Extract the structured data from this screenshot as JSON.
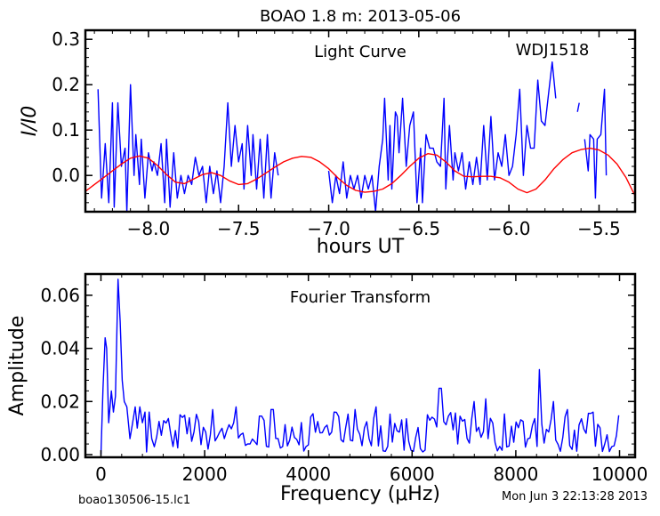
{
  "figure": {
    "title": "BOAO 1.8 m:  2013-05-06",
    "footer_left": "boao130506-15.lc1",
    "footer_right": "Mon Jun  3 22:13:28 2013"
  },
  "chart_data": [
    {
      "type": "line",
      "panel": "top",
      "annotation": "Light Curve",
      "object_label": "WDJ1518",
      "xlabel": "hours UT",
      "ylabel": "I/I0",
      "xlim": [
        -8.35,
        -5.3
      ],
      "ylim": [
        -0.08,
        0.32
      ],
      "xticks": [
        -8.0,
        -7.5,
        -7.0,
        -6.5,
        -6.0,
        -5.5
      ],
      "xtick_labels": [
        "−8.0",
        "−7.5",
        "−7.0",
        "−6.5",
        "−6.0",
        "−5.5"
      ],
      "yticks": [
        0.0,
        0.1,
        0.2,
        0.3
      ],
      "ytick_labels": [
        "0.0",
        "0.1",
        "0.2",
        "0.3"
      ],
      "grid": false,
      "series": [
        {
          "color": "#0000ff",
          "segments": [
            [
              [
                -8.28,
                0.19
              ],
              [
                -8.26,
                -0.05
              ],
              [
                -8.24,
                0.07
              ],
              [
                -8.22,
                -0.06
              ],
              [
                -8.2,
                0.16
              ],
              [
                -8.19,
                -0.07
              ],
              [
                -8.17,
                0.16
              ],
              [
                -8.15,
                0.02
              ],
              [
                -8.13,
                0.06
              ],
              [
                -8.12,
                -0.08
              ],
              [
                -8.1,
                0.2
              ],
              [
                -8.08,
                0.0
              ],
              [
                -8.07,
                0.09
              ],
              [
                -8.05,
                -0.02
              ],
              [
                -8.04,
                0.08
              ],
              [
                -8.02,
                -0.05
              ],
              [
                -8.0,
                0.05
              ],
              [
                -7.98,
                0.01
              ],
              [
                -7.97,
                0.03
              ],
              [
                -7.95,
                0.0
              ],
              [
                -7.93,
                0.07
              ],
              [
                -7.91,
                -0.06
              ],
              [
                -7.9,
                0.08
              ],
              [
                -7.88,
                -0.07
              ],
              [
                -7.86,
                0.05
              ],
              [
                -7.84,
                -0.05
              ],
              [
                -7.82,
                0.0
              ],
              [
                -7.8,
                -0.04
              ],
              [
                -7.78,
                0.0
              ],
              [
                -7.76,
                -0.02
              ],
              [
                -7.74,
                0.04
              ],
              [
                -7.72,
                0.0
              ],
              [
                -7.7,
                0.02
              ],
              [
                -7.68,
                -0.06
              ],
              [
                -7.66,
                0.02
              ],
              [
                -7.64,
                -0.04
              ],
              [
                -7.62,
                0.01
              ],
              [
                -7.6,
                -0.06
              ],
              [
                -7.58,
                0.02
              ],
              [
                -7.56,
                0.16
              ],
              [
                -7.54,
                0.02
              ],
              [
                -7.52,
                0.11
              ],
              [
                -7.5,
                0.03
              ],
              [
                -7.48,
                0.07
              ],
              [
                -7.47,
                -0.03
              ],
              [
                -7.45,
                0.11
              ],
              [
                -7.43,
                0.0
              ],
              [
                -7.42,
                0.09
              ],
              [
                -7.4,
                -0.03
              ],
              [
                -7.38,
                0.08
              ],
              [
                -7.36,
                -0.05
              ],
              [
                -7.34,
                0.09
              ],
              [
                -7.32,
                -0.05
              ],
              [
                -7.3,
                0.05
              ],
              [
                -7.28,
                0.0
              ]
            ],
            [
              [
                -7.0,
                0.01
              ],
              [
                -6.98,
                -0.06
              ],
              [
                -6.96,
                0.0
              ],
              [
                -6.94,
                -0.04
              ],
              [
                -6.92,
                0.03
              ],
              [
                -6.9,
                -0.05
              ],
              [
                -6.88,
                0.0
              ],
              [
                -6.86,
                -0.03
              ],
              [
                -6.84,
                0.0
              ],
              [
                -6.82,
                -0.05
              ],
              [
                -6.8,
                0.0
              ],
              [
                -6.78,
                -0.03
              ],
              [
                -6.76,
                0.0
              ],
              [
                -6.74,
                -0.08
              ],
              [
                -6.72,
                0.02
              ],
              [
                -6.7,
                0.08
              ],
              [
                -6.69,
                0.17
              ],
              [
                -6.67,
                -0.01
              ],
              [
                -6.66,
                0.11
              ],
              [
                -6.65,
                -0.03
              ],
              [
                -6.63,
                0.14
              ],
              [
                -6.62,
                0.13
              ],
              [
                -6.61,
                0.05
              ],
              [
                -6.59,
                0.17
              ],
              [
                -6.57,
                0.02
              ],
              [
                -6.55,
                0.11
              ],
              [
                -6.53,
                0.14
              ],
              [
                -6.51,
                -0.06
              ],
              [
                -6.49,
                0.06
              ],
              [
                -6.48,
                -0.06
              ],
              [
                -6.46,
                0.09
              ],
              [
                -6.44,
                0.06
              ],
              [
                -6.42,
                0.06
              ],
              [
                -6.4,
                0.03
              ],
              [
                -6.38,
                0.02
              ],
              [
                -6.36,
                0.17
              ],
              [
                -6.35,
                -0.03
              ],
              [
                -6.33,
                0.11
              ],
              [
                -6.31,
                -0.01
              ],
              [
                -6.3,
                0.05
              ],
              [
                -6.28,
                0.01
              ],
              [
                -6.26,
                0.05
              ],
              [
                -6.24,
                -0.03
              ],
              [
                -6.22,
                0.03
              ],
              [
                -6.2,
                -0.02
              ],
              [
                -6.18,
                0.04
              ],
              [
                -6.16,
                -0.02
              ],
              [
                -6.14,
                0.11
              ],
              [
                -6.12,
                -0.01
              ],
              [
                -6.1,
                0.13
              ],
              [
                -6.08,
                -0.01
              ],
              [
                -6.06,
                0.05
              ],
              [
                -6.04,
                0.02
              ],
              [
                -6.02,
                0.09
              ],
              [
                -6.0,
                0.0
              ],
              [
                -5.98,
                0.02
              ],
              [
                -5.96,
                0.09
              ],
              [
                -5.94,
                0.19
              ],
              [
                -5.92,
                0.0
              ],
              [
                -5.9,
                0.11
              ],
              [
                -5.88,
                0.06
              ],
              [
                -5.86,
                0.06
              ],
              [
                -5.84,
                0.21
              ],
              [
                -5.82,
                0.12
              ],
              [
                -5.8,
                0.11
              ],
              [
                -5.78,
                0.18
              ],
              [
                -5.76,
                0.25
              ],
              [
                -5.74,
                0.17
              ]
            ],
            [
              [
                -5.62,
                0.14
              ],
              [
                -5.61,
                0.16
              ]
            ],
            [
              [
                -5.58,
                0.08
              ],
              [
                -5.56,
                0.01
              ],
              [
                -5.55,
                0.09
              ],
              [
                -5.53,
                0.08
              ],
              [
                -5.52,
                -0.05
              ],
              [
                -5.51,
                0.08
              ],
              [
                -5.49,
                0.09
              ],
              [
                -5.47,
                0.19
              ],
              [
                -5.46,
                0.0
              ]
            ]
          ]
        },
        {
          "color": "#ff0000",
          "model": "smooth fit curve",
          "points": [
            [
              -8.35,
              -0.035
            ],
            [
              -8.3,
              -0.02
            ],
            [
              -8.25,
              -0.005
            ],
            [
              -8.2,
              0.01
            ],
            [
              -8.15,
              0.025
            ],
            [
              -8.1,
              0.038
            ],
            [
              -8.05,
              0.043
            ],
            [
              -8.0,
              0.038
            ],
            [
              -7.95,
              0.022
            ],
            [
              -7.9,
              0.002
            ],
            [
              -7.85,
              -0.015
            ],
            [
              -7.8,
              -0.018
            ],
            [
              -7.75,
              -0.008
            ],
            [
              -7.7,
              0.002
            ],
            [
              -7.65,
              0.006
            ],
            [
              -7.6,
              0.0
            ],
            [
              -7.55,
              -0.012
            ],
            [
              -7.5,
              -0.02
            ],
            [
              -7.45,
              -0.018
            ],
            [
              -7.4,
              -0.008
            ],
            [
              -7.35,
              0.005
            ],
            [
              -7.3,
              0.018
            ],
            [
              -7.25,
              0.03
            ],
            [
              -7.2,
              0.038
            ],
            [
              -7.15,
              0.042
            ],
            [
              -7.1,
              0.04
            ],
            [
              -7.05,
              0.03
            ],
            [
              -7.0,
              0.015
            ],
            [
              -6.95,
              -0.005
            ],
            [
              -6.9,
              -0.022
            ],
            [
              -6.85,
              -0.033
            ],
            [
              -6.8,
              -0.037
            ],
            [
              -6.75,
              -0.035
            ],
            [
              -6.7,
              -0.03
            ],
            [
              -6.65,
              -0.018
            ],
            [
              -6.6,
              0.0
            ],
            [
              -6.55,
              0.02
            ],
            [
              -6.5,
              0.038
            ],
            [
              -6.45,
              0.048
            ],
            [
              -6.4,
              0.045
            ],
            [
              -6.35,
              0.03
            ],
            [
              -6.3,
              0.01
            ],
            [
              -6.25,
              -0.002
            ],
            [
              -6.2,
              -0.003
            ],
            [
              -6.15,
              -0.002
            ],
            [
              -6.1,
              -0.002
            ],
            [
              -6.05,
              -0.005
            ],
            [
              -6.0,
              -0.015
            ],
            [
              -5.95,
              -0.03
            ],
            [
              -5.9,
              -0.038
            ],
            [
              -5.85,
              -0.03
            ],
            [
              -5.8,
              -0.01
            ],
            [
              -5.75,
              0.015
            ],
            [
              -5.7,
              0.035
            ],
            [
              -5.65,
              0.05
            ],
            [
              -5.6,
              0.057
            ],
            [
              -5.55,
              0.06
            ],
            [
              -5.5,
              0.056
            ],
            [
              -5.45,
              0.045
            ],
            [
              -5.4,
              0.025
            ],
            [
              -5.35,
              -0.005
            ],
            [
              -5.3,
              -0.045
            ]
          ]
        }
      ]
    },
    {
      "type": "line",
      "panel": "bottom",
      "annotation": "Fourier Transform",
      "xlabel": "Frequency (μHz)",
      "ylabel": "Amplitude",
      "xlim": [
        -300,
        10300
      ],
      "ylim": [
        -0.001,
        0.068
      ],
      "xticks": [
        0,
        2000,
        4000,
        6000,
        8000,
        10000
      ],
      "xtick_labels": [
        "0",
        "2000",
        "4000",
        "6000",
        "8000",
        "10000"
      ],
      "yticks": [
        0.0,
        0.02,
        0.04,
        0.06
      ],
      "ytick_labels": [
        "0.00",
        "0.02",
        "0.04",
        "0.06"
      ],
      "grid": false,
      "series": [
        {
          "color": "#0000ff",
          "points": [
            [
              0,
              0.0
            ],
            [
              40,
              0.025
            ],
            [
              80,
              0.044
            ],
            [
              110,
              0.04
            ],
            [
              150,
              0.012
            ],
            [
              200,
              0.024
            ],
            [
              240,
              0.016
            ],
            [
              280,
              0.022
            ],
            [
              330,
              0.066
            ],
            [
              370,
              0.05
            ],
            [
              410,
              0.028
            ],
            [
              450,
              0.02
            ],
            [
              500,
              0.018
            ],
            [
              560,
              0.006
            ],
            [
              610,
              0.012
            ],
            [
              660,
              0.018
            ],
            [
              700,
              0.01
            ],
            [
              750,
              0.018
            ],
            [
              800,
              0.012
            ],
            [
              850,
              0.016
            ],
            [
              880,
              0.001
            ],
            [
              930,
              0.016
            ],
            [
              980,
              0.006
            ]
          ]
        }
      ]
    }
  ]
}
